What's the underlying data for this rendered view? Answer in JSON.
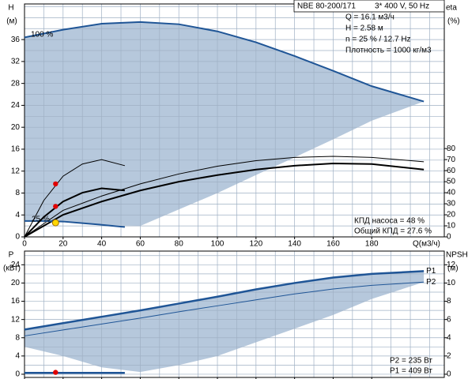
{
  "chart_data": [
    {
      "type": "line",
      "header": [
        "NBE 80-200/171",
        "3* 400 V, 50 Hz"
      ],
      "annotations": [
        "Q = 16.1 м3/ч",
        "H = 2.58 м",
        "n = 25 % / 12.7 Hz",
        "Плотность = 1000 кг/м3"
      ],
      "annotations_bottom": [
        "КПД насоса = 48 %",
        "Общий КПД = 27.6 %"
      ],
      "speed_labels": [
        "100 %",
        "25 %"
      ],
      "ylabel": [
        "H",
        "(м)"
      ],
      "y2label": [
        "eta",
        "(%)"
      ],
      "xlabel": "Q(м3/ч)",
      "xlim": [
        0,
        217.6
      ],
      "xticks": [
        0,
        20,
        40,
        60,
        80,
        100,
        120,
        140,
        160,
        180
      ],
      "xgrid": [
        10,
        30,
        50,
        70,
        90,
        110,
        130,
        150,
        170,
        190,
        200,
        210
      ],
      "ylim": [
        0,
        42.5
      ],
      "yticks": [
        0,
        4,
        8,
        12,
        16,
        20,
        24,
        28,
        32,
        36
      ],
      "ygrid": [
        2,
        6,
        10,
        14,
        18,
        22,
        26,
        30,
        34,
        38,
        40,
        42
      ],
      "y2lim": [
        0,
        211
      ],
      "y2ticks": [
        0,
        10,
        20,
        30,
        40,
        50,
        60,
        70,
        80
      ],
      "grid": true,
      "area_color": "#b6c8dc",
      "x": [
        0,
        20,
        40,
        60,
        80,
        100,
        120,
        140,
        160,
        180,
        207
      ],
      "area_lower": [
        3,
        2.8,
        2.2,
        2.0,
        5,
        8,
        11.3,
        14.5,
        17.8,
        21.2,
        24.7
      ],
      "series": [
        {
          "color": "#1f5596",
          "width": 2,
          "values": [
            36.4,
            37.8,
            38.9,
            39.2,
            38.8,
            37.5,
            35.5,
            33,
            30.3,
            27.5,
            24.7
          ]
        },
        {
          "color": "#000000",
          "width": 2,
          "axis": "y2",
          "values": [
            0,
            20,
            32,
            42,
            50,
            56,
            61,
            64.5,
            66.5,
            66,
            61
          ]
        },
        {
          "color": "#000000",
          "width": 1,
          "axis": "y2",
          "values": [
            0,
            24,
            37,
            48,
            57,
            64,
            69,
            72,
            73,
            72,
            68
          ]
        }
      ],
      "low_x": [
        0,
        10,
        20,
        30,
        40,
        52
      ],
      "low_series": [
        {
          "color": "#1f5596",
          "width": 2,
          "values": [
            2.9,
            2.9,
            2.8,
            2.5,
            2.2,
            1.8
          ]
        },
        {
          "color": "#000000",
          "width": 2,
          "axis": "y2",
          "values": [
            0,
            18,
            32,
            40,
            44,
            42
          ]
        },
        {
          "color": "#000000",
          "width": 1,
          "axis": "y2",
          "values": [
            0,
            33,
            55,
            66,
            70,
            64.5
          ]
        }
      ],
      "duty": {
        "q": 16.1,
        "h": 2.58,
        "eta_pump": 48,
        "eta_total": 27.6
      }
    },
    {
      "type": "line",
      "annotations_bottom": [
        "P2 = 235 Вт",
        "P1 = 409 Вт"
      ],
      "ylabel": [
        "P",
        "(кВт)"
      ],
      "y2label": [
        "NPSH",
        "(м)"
      ],
      "xlim": [
        0,
        217.6
      ],
      "xticks": [
        0,
        20,
        40,
        60,
        80,
        100,
        120,
        140,
        160,
        180
      ],
      "xgrid": [
        10,
        30,
        50,
        70,
        90,
        110,
        130,
        150,
        170,
        190,
        200,
        210
      ],
      "ylim": [
        -0.7,
        27
      ],
      "yticks": [
        0,
        4,
        8,
        12,
        16,
        20,
        24
      ],
      "ygrid": [
        2,
        6,
        10,
        14,
        18,
        22,
        26
      ],
      "y2lim": [
        -0.35,
        13.5
      ],
      "y2ticks": [
        0,
        2,
        4,
        6,
        8,
        10,
        12
      ],
      "grid": true,
      "area_color": "#b6c8dc",
      "x": [
        0,
        20,
        40,
        60,
        80,
        100,
        120,
        140,
        160,
        180,
        207
      ],
      "area_lower": [
        6,
        4,
        1.5,
        0.5,
        2,
        4,
        7,
        10,
        13,
        16.5,
        20.2
      ],
      "series": [
        {
          "name": "P1",
          "color": "#1f5596",
          "width": 2.5,
          "values": [
            9.8,
            11.2,
            12.6,
            14,
            15.5,
            17,
            18.6,
            20,
            21.2,
            22,
            22.6
          ]
        },
        {
          "name": "P2",
          "color": "#1f5596",
          "width": 1,
          "values": [
            8.4,
            9.7,
            11,
            12.3,
            13.7,
            15,
            16.3,
            17.6,
            18.7,
            19.5,
            20.2
          ]
        }
      ],
      "low_x": [
        0,
        52
      ],
      "low_series": [
        {
          "color": "#1f5596",
          "width": 2.5,
          "values": [
            0.3,
            0.3
          ]
        }
      ],
      "duty": {
        "q": 16.1,
        "p1": 0.409
      }
    }
  ]
}
